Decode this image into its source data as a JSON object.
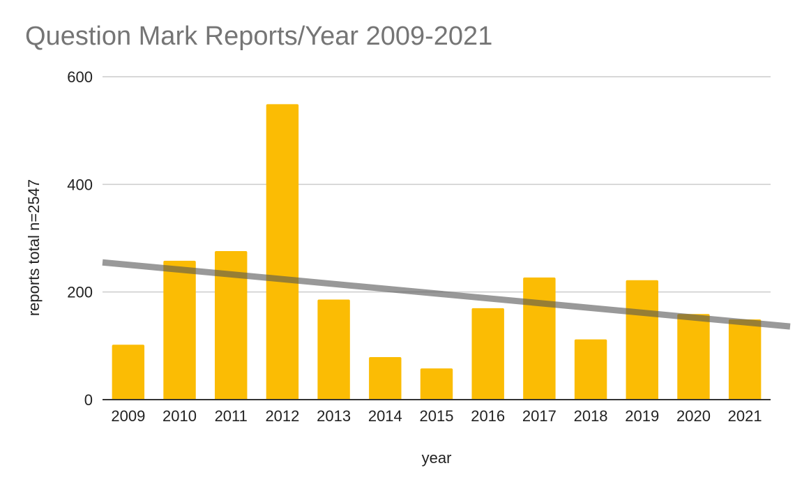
{
  "chart_data": {
    "type": "bar",
    "title": "Question Mark Reports/Year 2009-2021",
    "xlabel": "year",
    "ylabel": "reports  total n=2547",
    "categories": [
      "2009",
      "2010",
      "2011",
      "2012",
      "2013",
      "2014",
      "2015",
      "2016",
      "2017",
      "2018",
      "2019",
      "2020",
      "2021"
    ],
    "series": [
      {
        "values": [
          102,
          258,
          276,
          549,
          186,
          79,
          58,
          170,
          227,
          112,
          222,
          159,
          149
        ],
        "color": "#fbbc04"
      }
    ],
    "trendline": {
      "type": "linear",
      "start": 255,
      "end": 139,
      "color": "#555555",
      "opacity": 0.6
    },
    "ylim": [
      0,
      600
    ],
    "yticks": [
      0,
      200,
      400,
      600
    ],
    "grid": true,
    "legend": "none"
  }
}
